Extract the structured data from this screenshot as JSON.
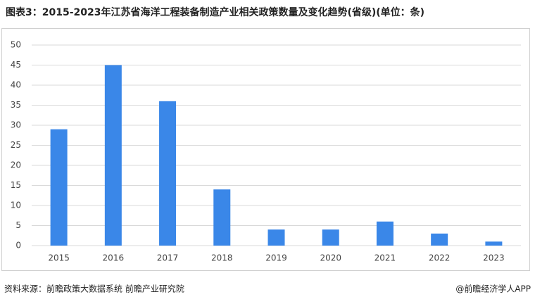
{
  "chart_data": {
    "type": "bar",
    "title": "图表3：2015-2023年江苏省海洋工程装备制造产业相关政策数量及变化趋势(省级)(单位：条)",
    "categories": [
      "2015",
      "2016",
      "2017",
      "2018",
      "2019",
      "2020",
      "2021",
      "2022",
      "2023"
    ],
    "values": [
      29,
      45,
      36,
      14,
      4,
      4,
      6,
      3,
      1
    ],
    "color": "#3a87e8",
    "ylim": [
      0,
      50
    ],
    "yticks": [
      0,
      5,
      10,
      15,
      20,
      25,
      30,
      35,
      40,
      45,
      50
    ],
    "grid": true,
    "source": "资料来源：前瞻政策大数据系统 前瞻产业研究院",
    "credit": "@前瞻经济学人APP"
  }
}
